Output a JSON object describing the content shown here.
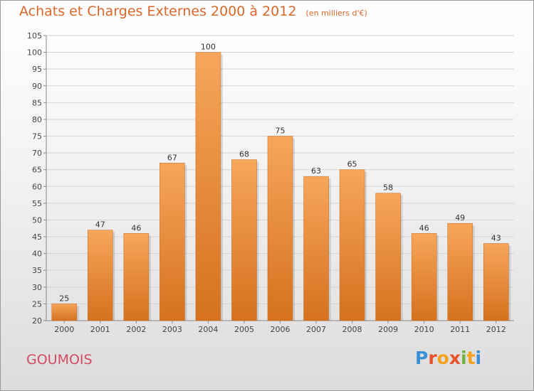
{
  "header": {
    "title": "Achats et Charges Externes 2000 à 2012",
    "unit": "(en milliers d'€)"
  },
  "footer": {
    "commune": "GOUMOIS",
    "logo_text": "Proxiti",
    "logo_colors": [
      "#3b8fd4",
      "#e8532c",
      "#f4a11d",
      "#e8532c",
      "#6cb33f",
      "#f4a11d",
      "#3b8fd4"
    ]
  },
  "colors": {
    "bar_light": "#f7a65a",
    "bar_dark": "#d5711f",
    "title": "#d9662a",
    "commune": "#d34a63"
  },
  "chart_data": {
    "type": "bar",
    "title": "Achats et Charges Externes 2000 à 2012",
    "categories": [
      "2000",
      "2001",
      "2002",
      "2003",
      "2004",
      "2005",
      "2006",
      "2007",
      "2008",
      "2009",
      "2010",
      "2011",
      "2012"
    ],
    "values": [
      25,
      47,
      46,
      67,
      100,
      68,
      75,
      63,
      65,
      58,
      46,
      49,
      43
    ],
    "ylim": [
      20,
      105
    ],
    "yticks": [
      20,
      25,
      30,
      35,
      40,
      45,
      50,
      55,
      60,
      65,
      70,
      75,
      80,
      85,
      90,
      95,
      100,
      105
    ],
    "grid": true,
    "legend": "none"
  }
}
